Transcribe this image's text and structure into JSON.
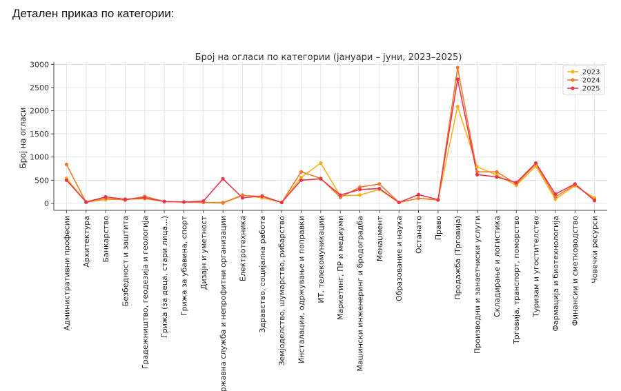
{
  "page": {
    "heading": "Детален приказ по категории:"
  },
  "chart_data": {
    "type": "line",
    "title": "Број на огласи по категории (јануари – јуни, 2023–2025)",
    "xlabel": "",
    "ylabel": "Број на огласи",
    "ylim": [
      -150,
      3050
    ],
    "yticks": [
      0,
      500,
      1000,
      1500,
      2000,
      2500,
      3000
    ],
    "grid": true,
    "legend": "top-right",
    "categories": [
      "Административни професии",
      "Архитектура",
      "Банкарство",
      "Безбедност и заштита",
      "Градежништво, геодезија и геологија",
      "Грижа (за деца, стари лица...)",
      "Грижа за убавина, спорт",
      "Дизајн и уметност",
      "Државна служба и непрофитни организации",
      "Електротехника",
      "Здравство, социјална работа",
      "Земјоделство, шумарство, рибарство",
      "Инсталации, одржување и поправки",
      "ИТ, телекомуникации",
      "Маркетинг, ПР и медиуми",
      "Машински инженеринг и бродоградба",
      "Менаџмент",
      "Образование и наука",
      "Останато",
      "Право",
      "Продажба (Трговија)",
      "Производни и занаетчиски услуги",
      "Складирање и логистика",
      "Трговија, транспорт, поморство",
      "Туризам и угостителство",
      "Фармација и биотехнологија",
      "Финансии и сметководство",
      "Човечки ресурси"
    ],
    "series": [
      {
        "name": "2023",
        "color": "#f5b21c",
        "values": [
          540,
          30,
          80,
          90,
          100,
          40,
          30,
          20,
          20,
          180,
          120,
          20,
          560,
          870,
          160,
          180,
          300,
          20,
          110,
          80,
          2090,
          790,
          610,
          390,
          800,
          90,
          380,
          120
        ]
      },
      {
        "name": "2024",
        "color": "#ef7a2d",
        "values": [
          840,
          20,
          110,
          70,
          150,
          40,
          30,
          20,
          10,
          170,
          150,
          20,
          680,
          540,
          130,
          350,
          420,
          20,
          110,
          70,
          2930,
          680,
          680,
          420,
          850,
          140,
          400,
          80
        ]
      },
      {
        "name": "2025",
        "color": "#e8344e",
        "values": [
          500,
          30,
          140,
          90,
          120,
          40,
          30,
          50,
          530,
          120,
          160,
          20,
          500,
          530,
          180,
          300,
          320,
          20,
          190,
          80,
          2680,
          620,
          570,
          450,
          870,
          200,
          420,
          60
        ]
      }
    ]
  }
}
